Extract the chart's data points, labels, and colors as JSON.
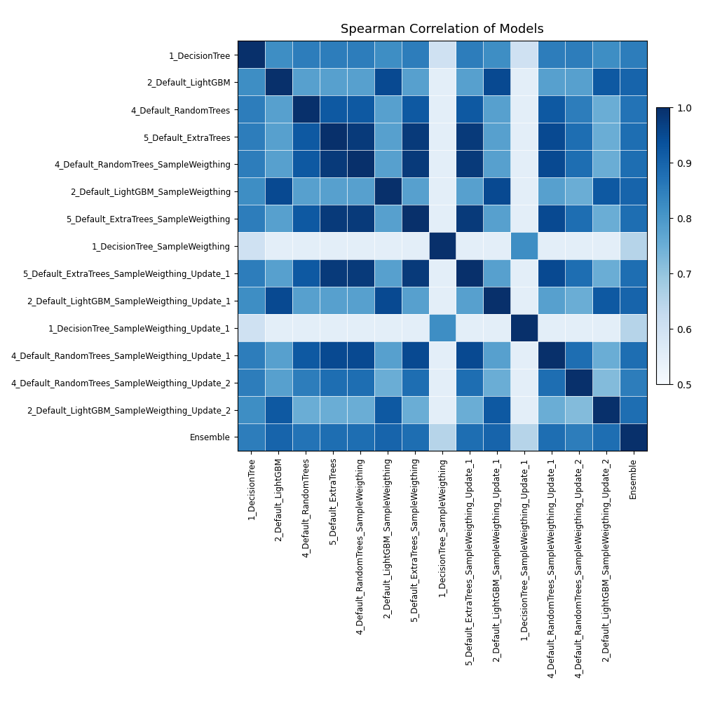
{
  "labels": [
    "1_DecisionTree",
    "2_Default_LightGBM",
    "4_Default_RandomTrees",
    "5_Default_ExtraTrees",
    "4_Default_RandomTrees_SampleWeigthing",
    "2_Default_LightGBM_SampleWeigthing",
    "5_Default_ExtraTrees_SampleWeigthing",
    "1_DecisionTree_SampleWeigthing",
    "5_Default_ExtraTrees_SampleWeigthing_Update_1",
    "2_Default_LightGBM_SampleWeigthing_Update_1",
    "1_DecisionTree_SampleWeigthing_Update_1",
    "4_Default_RandomTrees_SampleWeigthing_Update_1",
    "4_Default_RandomTrees_SampleWeigthing_Update_2",
    "2_Default_LightGBM_SampleWeigthing_Update_2",
    "Ensemble"
  ],
  "matrix": [
    [
      1.0,
      0.82,
      0.85,
      0.85,
      0.85,
      0.82,
      0.85,
      0.6,
      0.85,
      0.82,
      0.6,
      0.85,
      0.85,
      0.82,
      0.85
    ],
    [
      0.82,
      1.0,
      0.78,
      0.78,
      0.78,
      0.95,
      0.78,
      0.55,
      0.78,
      0.95,
      0.55,
      0.78,
      0.78,
      0.92,
      0.9
    ],
    [
      0.85,
      0.78,
      1.0,
      0.92,
      0.92,
      0.78,
      0.92,
      0.55,
      0.92,
      0.78,
      0.55,
      0.92,
      0.85,
      0.75,
      0.87
    ],
    [
      0.85,
      0.78,
      0.92,
      1.0,
      0.98,
      0.78,
      0.98,
      0.55,
      0.98,
      0.78,
      0.55,
      0.95,
      0.88,
      0.75,
      0.88
    ],
    [
      0.85,
      0.78,
      0.92,
      0.98,
      1.0,
      0.78,
      0.98,
      0.55,
      0.98,
      0.78,
      0.55,
      0.95,
      0.88,
      0.75,
      0.88
    ],
    [
      0.82,
      0.95,
      0.78,
      0.78,
      0.78,
      1.0,
      0.78,
      0.55,
      0.78,
      0.95,
      0.55,
      0.78,
      0.75,
      0.92,
      0.9
    ],
    [
      0.85,
      0.78,
      0.92,
      0.98,
      0.98,
      0.78,
      1.0,
      0.55,
      0.98,
      0.78,
      0.55,
      0.95,
      0.88,
      0.75,
      0.88
    ],
    [
      0.6,
      0.55,
      0.55,
      0.55,
      0.55,
      0.55,
      0.55,
      1.0,
      0.55,
      0.55,
      0.82,
      0.55,
      0.55,
      0.55,
      0.65
    ],
    [
      0.85,
      0.78,
      0.92,
      0.98,
      0.98,
      0.78,
      0.98,
      0.55,
      1.0,
      0.78,
      0.55,
      0.95,
      0.88,
      0.75,
      0.88
    ],
    [
      0.82,
      0.95,
      0.78,
      0.78,
      0.78,
      0.95,
      0.78,
      0.55,
      0.78,
      1.0,
      0.55,
      0.78,
      0.75,
      0.92,
      0.9
    ],
    [
      0.6,
      0.55,
      0.55,
      0.55,
      0.55,
      0.55,
      0.55,
      0.82,
      0.55,
      0.55,
      1.0,
      0.55,
      0.55,
      0.55,
      0.65
    ],
    [
      0.85,
      0.78,
      0.92,
      0.95,
      0.95,
      0.78,
      0.95,
      0.55,
      0.95,
      0.78,
      0.55,
      1.0,
      0.88,
      0.75,
      0.88
    ],
    [
      0.85,
      0.78,
      0.85,
      0.88,
      0.88,
      0.75,
      0.88,
      0.55,
      0.88,
      0.75,
      0.55,
      0.88,
      1.0,
      0.72,
      0.85
    ],
    [
      0.82,
      0.92,
      0.75,
      0.75,
      0.75,
      0.92,
      0.75,
      0.55,
      0.75,
      0.92,
      0.55,
      0.75,
      0.72,
      1.0,
      0.88
    ],
    [
      0.85,
      0.9,
      0.87,
      0.88,
      0.88,
      0.9,
      0.88,
      0.65,
      0.88,
      0.9,
      0.65,
      0.88,
      0.85,
      0.88,
      1.0
    ]
  ],
  "title": "Spearman Correlation of Models",
  "vmin": 0.5,
  "vmax": 1.0,
  "colormap": "Blues",
  "figsize": [
    10,
    10
  ],
  "dpi": 100,
  "colorbar_ticks": [
    0.5,
    0.6,
    0.7,
    0.8,
    0.9,
    1.0
  ],
  "title_fontsize": 13,
  "tick_fontsize": 8.5
}
